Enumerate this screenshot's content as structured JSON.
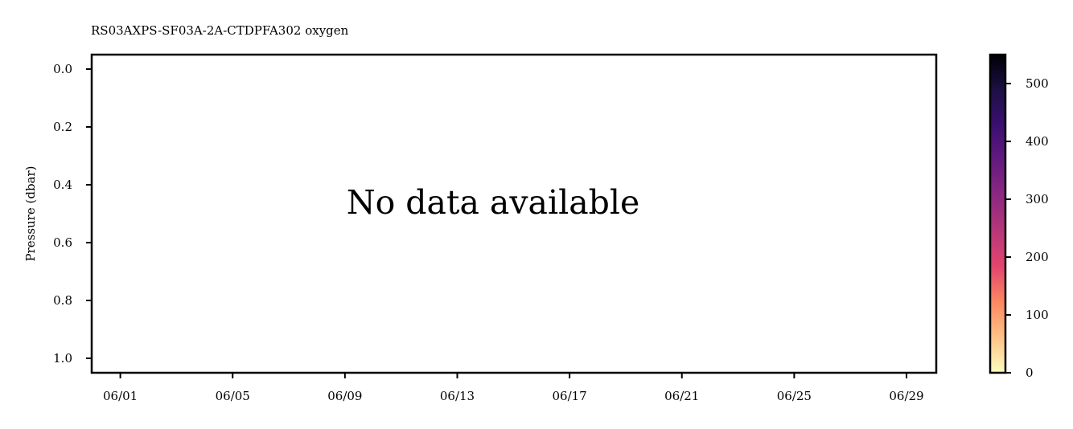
{
  "chart_data": {
    "type": "heatmap",
    "title": "RS03AXPS-SF03A-2A-CTDPFA302 oxygen",
    "ylabel": "Pressure (dbar)",
    "xlabel": "",
    "message": "No data available",
    "ylim": [
      1.05,
      -0.05
    ],
    "y_inverted": true,
    "y_ticks": [
      0.0,
      0.2,
      0.4,
      0.6,
      0.8,
      1.0
    ],
    "y_tick_labels": [
      "0.0",
      "0.2",
      "0.4",
      "0.6",
      "0.8",
      "1.0"
    ],
    "x_ticks": [
      "06/01",
      "06/05",
      "06/09",
      "06/13",
      "06/17",
      "06/21",
      "06/25",
      "06/29"
    ],
    "x_tick_days": [
      1,
      5,
      9,
      13,
      17,
      21,
      25,
      29
    ],
    "xlim_days": [
      -0.02,
      30.06
    ],
    "values": [],
    "grid": false,
    "colorbar": {
      "range": [
        0,
        550
      ],
      "ticks": [
        0,
        100,
        200,
        300,
        400,
        500
      ],
      "tick_labels": [
        "0",
        "100",
        "200",
        "300",
        "400",
        "500"
      ],
      "colormap": "magma_r",
      "colors": [
        "#fcfdbf",
        "#fec287",
        "#fb8861",
        "#e3466e",
        "#b73779",
        "#8c2981",
        "#641a80",
        "#3b0f70",
        "#1c1044",
        "#000004"
      ]
    }
  }
}
